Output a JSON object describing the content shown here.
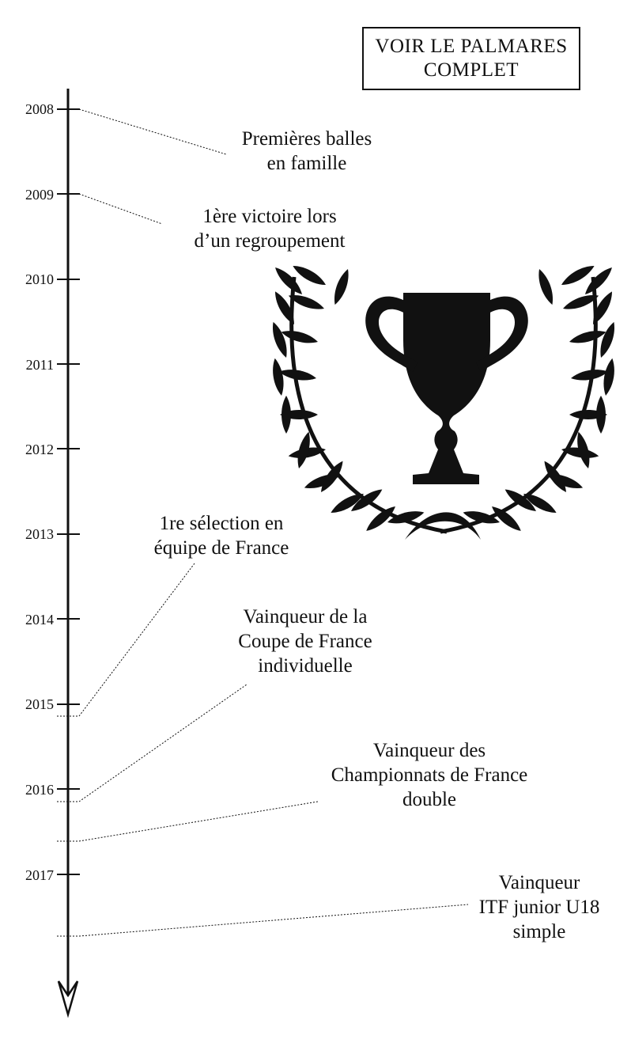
{
  "cta": {
    "line1": "VOIR LE PALMARES",
    "line2": "COMPLET"
  },
  "years": [
    "2008",
    "2009",
    "2010",
    "2011",
    "2012",
    "2013",
    "2014",
    "2015",
    "2016",
    "2017"
  ],
  "events": [
    {
      "lines": [
        "Premières balles",
        "en famille"
      ]
    },
    {
      "lines": [
        "1ère victoire lors",
        "d’un regroupement"
      ]
    },
    {
      "lines": [
        "1re sélection en",
        "équipe de France"
      ]
    },
    {
      "lines": [
        "Vainqueur de la",
        "Coupe de France",
        "individuelle"
      ]
    },
    {
      "lines": [
        "Vainqueur des",
        "Championnats de France",
        "double"
      ]
    },
    {
      "lines": [
        "Vainqueur",
        "ITF junior U18",
        "simple"
      ]
    }
  ],
  "icons": {
    "trophy": "trophy-with-laurel-icon",
    "arrow": "arrow-down-icon"
  },
  "colors": {
    "ink": "#111111",
    "background": "#ffffff"
  }
}
